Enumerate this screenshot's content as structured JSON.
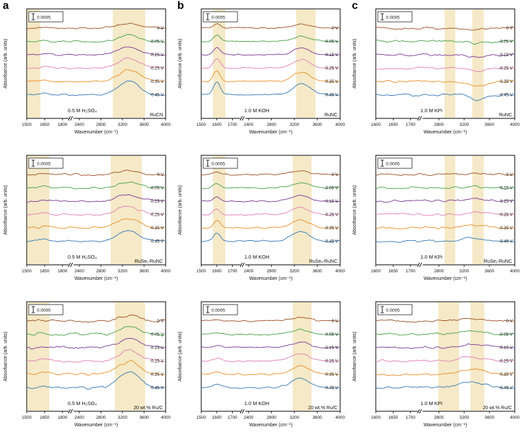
{
  "figure": {
    "column_letters": [
      "a",
      "b",
      "c"
    ]
  },
  "chart_data": {
    "type": "line",
    "xlabel": "Wavenumber (cm⁻¹)",
    "ylabel": "Absorbance (arb. units)",
    "scale_bar": "0.0005",
    "accent_red": "#d03a24",
    "series": [
      {
        "label": "0 V",
        "color": "#9a4a1e"
      },
      {
        "label": "-0.05 V",
        "color": "#3f9f40"
      },
      {
        "label": "-0.15 V",
        "color": "#7b3294"
      },
      {
        "label": "-0.25 V",
        "color": "#e07ab4"
      },
      {
        "label": "-0.35 V",
        "color": "#ec8a1f"
      },
      {
        "label": "-0.45 V",
        "color": "#2e74b5"
      }
    ],
    "series_scales": [
      0.35,
      0.48,
      0.58,
      0.72,
      0.86,
      1.0
    ],
    "panels": [
      {
        "id": "a1",
        "letter": "a",
        "electrolyte": "0.5 M H₂SO₄",
        "catalyst": "RuCN",
        "x_segments": [
          [
            1500,
            1850
          ],
          [
            2300,
            4000
          ]
        ],
        "seg_fractions": [
          0.3,
          0.34
        ],
        "x_ticks": [
          1500,
          1650,
          1800,
          2400,
          2800,
          3200,
          3600,
          4000
        ],
        "bands": [
          [
            1505,
            1615
          ],
          [
            3020,
            3620
          ]
        ],
        "peaks": [
          {
            "center": 3320,
            "sigma": 190,
            "amp": 20
          },
          {
            "center": 1650,
            "sigma": 28,
            "amp": 3
          }
        ],
        "noise": 1.1
      },
      {
        "id": "b1",
        "letter": "b",
        "electrolyte": "1.0 M KOH",
        "catalyst": "RuNC",
        "x_segments": [
          [
            1500,
            1750
          ],
          [
            2350,
            4000
          ]
        ],
        "seg_fractions": [
          0.28,
          0.32
        ],
        "x_ticks": [
          1500,
          1600,
          1700,
          2400,
          2800,
          3200,
          3600,
          4000
        ],
        "bands": [
          [
            1575,
            1655
          ],
          [
            3230,
            3570
          ]
        ],
        "peaks": [
          {
            "center": 1600,
            "sigma": 22,
            "amp": 18
          },
          {
            "center": 3330,
            "sigma": 150,
            "amp": 16
          }
        ],
        "noise": 0.9
      },
      {
        "id": "c1",
        "letter": "c",
        "electrolyte": "1.0 M KPi",
        "catalyst": "RuNC",
        "x_segments": [
          [
            1600,
            1720
          ],
          [
            2550,
            4000
          ]
        ],
        "seg_fractions": [
          0.3,
          0.34
        ],
        "x_ticks": [
          1600,
          1650,
          1700,
          2800,
          3200,
          3600,
          4000
        ],
        "bands": [
          [
            2890,
            3060
          ],
          [
            3330,
            3510
          ]
        ],
        "peaks": [
          {
            "center": 3420,
            "sigma": 130,
            "amp": -7
          }
        ],
        "noise": 1.6
      },
      {
        "id": "a2",
        "electrolyte": "0.5 M H₂SO₄",
        "catalyst": "RuSeₓ-RuNC",
        "x_segments": [
          [
            1500,
            1850
          ],
          [
            2300,
            4000
          ]
        ],
        "seg_fractions": [
          0.3,
          0.34
        ],
        "x_ticks": [
          1500,
          1650,
          1800,
          2400,
          2800,
          3200,
          3600,
          4000
        ],
        "bands": [
          [
            1505,
            1690
          ],
          [
            2980,
            3560
          ]
        ],
        "peaks": [
          {
            "center": 3300,
            "sigma": 200,
            "amp": 16
          },
          {
            "center": 1650,
            "sigma": 28,
            "amp": 4
          }
        ],
        "noise": 1.4
      },
      {
        "id": "b2",
        "electrolyte": "1.0 M KOH",
        "catalyst": "RuSeₓ-RuNC",
        "x_segments": [
          [
            1500,
            1750
          ],
          [
            2350,
            4000
          ]
        ],
        "seg_fractions": [
          0.28,
          0.32
        ],
        "x_ticks": [
          1500,
          1600,
          1700,
          2400,
          2800,
          3200,
          3600,
          4000
        ],
        "bands": [
          [
            1575,
            1655
          ],
          [
            3170,
            3500
          ]
        ],
        "peaks": [
          {
            "center": 1600,
            "sigma": 22,
            "amp": 12
          },
          {
            "center": 3300,
            "sigma": 160,
            "amp": 14
          }
        ],
        "noise": 1.0
      },
      {
        "id": "c2",
        "electrolyte": "1.0 M KPi",
        "catalyst": "RuSeₓ-RuNC",
        "x_segments": [
          [
            1600,
            1720
          ],
          [
            2550,
            4000
          ]
        ],
        "seg_fractions": [
          0.3,
          0.34
        ],
        "x_ticks": [
          1600,
          1650,
          1700,
          2800,
          3200,
          3600,
          4000
        ],
        "bands": [
          [
            2890,
            3060
          ],
          [
            3330,
            3510
          ]
        ],
        "peaks": [
          {
            "center": 3350,
            "sigma": 150,
            "amp": 5
          }
        ],
        "noise": 1.5
      },
      {
        "id": "a3",
        "electrolyte": "0.5 M H₂SO₄",
        "catalyst": "20 wt.% Ru/C",
        "x_segments": [
          [
            1500,
            1850
          ],
          [
            2300,
            4000
          ]
        ],
        "seg_fractions": [
          0.3,
          0.34
        ],
        "x_ticks": [
          1500,
          1650,
          1800,
          2400,
          2800,
          3200,
          3600,
          4000
        ],
        "bands": [
          [
            1505,
            1690
          ],
          [
            3060,
            3620
          ]
        ],
        "peaks": [
          {
            "center": 3330,
            "sigma": 190,
            "amp": 22
          },
          {
            "center": 1650,
            "sigma": 28,
            "amp": 4
          }
        ],
        "noise": 1.9
      },
      {
        "id": "b3",
        "electrolyte": "1.0 M KOH",
        "catalyst": "20 wt.% Ru/C",
        "x_segments": [
          [
            1500,
            1750
          ],
          [
            2350,
            4000
          ]
        ],
        "seg_fractions": [
          0.28,
          0.32
        ],
        "x_ticks": [
          1500,
          1600,
          1700,
          2400,
          2800,
          3200,
          3600,
          4000
        ],
        "bands": [
          [
            3170,
            3500
          ]
        ],
        "peaks": [
          {
            "center": 1600,
            "sigma": 30,
            "amp": 5
          },
          {
            "center": 3300,
            "sigma": 160,
            "amp": 14
          }
        ],
        "noise": 1.0
      },
      {
        "id": "c3",
        "electrolyte": "1.0 M KPi",
        "catalyst": "20 wt.% Ru/C",
        "x_segments": [
          [
            1600,
            1720
          ],
          [
            2550,
            4000
          ]
        ],
        "seg_fractions": [
          0.3,
          0.34
        ],
        "x_ticks": [
          1600,
          1650,
          1700,
          2800,
          3200,
          3600,
          4000
        ],
        "bands": [
          [
            2790,
            3120
          ],
          [
            3300,
            3520
          ]
        ],
        "peaks": [
          {
            "center": 3300,
            "sigma": 190,
            "amp": 9
          }
        ],
        "noise": 1.6
      }
    ]
  }
}
